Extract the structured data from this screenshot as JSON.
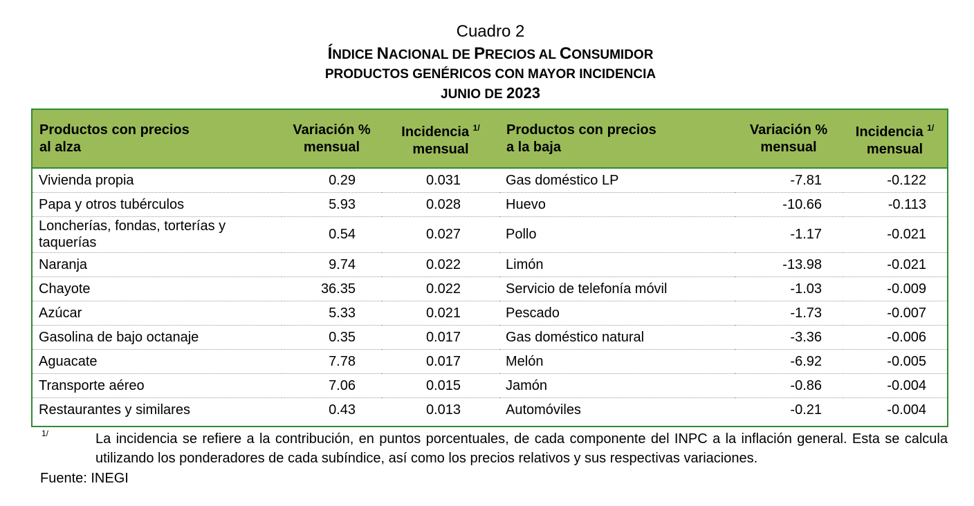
{
  "header": {
    "cuadro": "Cuadro 2",
    "title_initial_1": "Í",
    "title_rest_1": "NDICE ",
    "title_initial_2": "N",
    "title_rest_2": "ACIONAL DE ",
    "title_initial_3": "P",
    "title_rest_3": "RECIOS AL ",
    "title_initial_4": "C",
    "title_rest_4": "ONSUMIDOR",
    "subtitle": "PRODUCTOS GENÉRICOS CON MAYOR INCIDENCIA",
    "date_label": "JUNIO DE ",
    "date_year": "2023"
  },
  "table": {
    "columns": {
      "up_product_line1": "Productos con precios",
      "up_product_line2": "al alza",
      "variation_line1": "Variación %",
      "variation_line2": "mensual",
      "incidence_line1": "Incidencia",
      "incidence_mark": "1/",
      "incidence_line2": "mensual",
      "down_product_line1": "Productos con precios",
      "down_product_line2": "a la baja"
    },
    "rows": [
      {
        "up_product": "Vivienda propia",
        "up_variation": "0.29",
        "up_incidence": "0.031",
        "down_product": "Gas doméstico LP",
        "down_variation": "-7.81",
        "down_incidence": "-0.122"
      },
      {
        "up_product": "Papa y otros tubérculos",
        "up_variation": "5.93",
        "up_incidence": "0.028",
        "down_product": "Huevo",
        "down_variation": "-10.66",
        "down_incidence": "-0.113"
      },
      {
        "up_product": "Loncherías, fondas, torterías y taquerías",
        "up_variation": "0.54",
        "up_incidence": "0.027",
        "down_product": "Pollo",
        "down_variation": "-1.17",
        "down_incidence": "-0.021"
      },
      {
        "up_product": "Naranja",
        "up_variation": "9.74",
        "up_incidence": "0.022",
        "down_product": "Limón",
        "down_variation": "-13.98",
        "down_incidence": "-0.021"
      },
      {
        "up_product": "Chayote",
        "up_variation": "36.35",
        "up_incidence": "0.022",
        "down_product": "Servicio de telefonía móvil",
        "down_variation": "-1.03",
        "down_incidence": "-0.009"
      },
      {
        "up_product": "Azúcar",
        "up_variation": "5.33",
        "up_incidence": "0.021",
        "down_product": "Pescado",
        "down_variation": "-1.73",
        "down_incidence": "-0.007"
      },
      {
        "up_product": "Gasolina de bajo octanaje",
        "up_variation": "0.35",
        "up_incidence": "0.017",
        "down_product": "Gas doméstico natural",
        "down_variation": "-3.36",
        "down_incidence": "-0.006"
      },
      {
        "up_product": "Aguacate",
        "up_variation": "7.78",
        "up_incidence": "0.017",
        "down_product": "Melón",
        "down_variation": "-6.92",
        "down_incidence": "-0.005"
      },
      {
        "up_product": "Transporte aéreo",
        "up_variation": "7.06",
        "up_incidence": "0.015",
        "down_product": "Jamón",
        "down_variation": "-0.86",
        "down_incidence": "-0.004"
      },
      {
        "up_product": "Restaurantes y similares",
        "up_variation": "0.43",
        "up_incidence": "0.013",
        "down_product": "Automóviles",
        "down_variation": "-0.21",
        "down_incidence": "-0.004"
      }
    ]
  },
  "footnote": {
    "mark": "1/",
    "text": "La incidencia se refiere a la contribución, en puntos porcentuales, de cada componente del INPC a la inflación general. Esta se calcula utilizando los ponderadores de cada subíndice, así como los precios relativos y sus respectivas variaciones."
  },
  "source": "Fuente: INEGI",
  "colors": {
    "header_fill": "#9bbb59",
    "border": "#2f8a33"
  }
}
